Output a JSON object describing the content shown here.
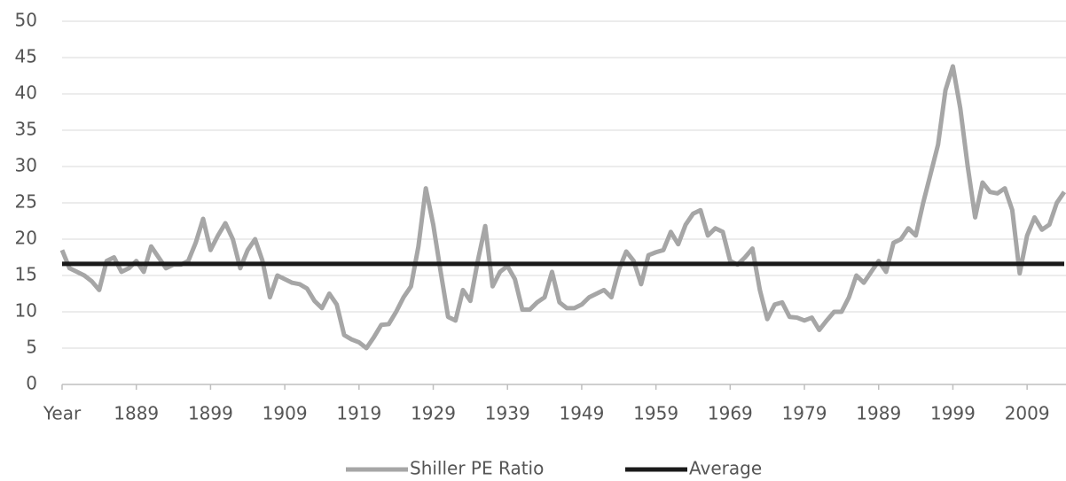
{
  "chart_data": {
    "type": "line",
    "categories": [
      "Year",
      null,
      null,
      null,
      null,
      null,
      null,
      null,
      null,
      null,
      "1889",
      null,
      null,
      null,
      null,
      null,
      null,
      null,
      null,
      null,
      "1899",
      null,
      null,
      null,
      null,
      null,
      null,
      null,
      null,
      null,
      "1909",
      null,
      null,
      null,
      null,
      null,
      null,
      null,
      null,
      null,
      "1919",
      null,
      null,
      null,
      null,
      null,
      null,
      null,
      null,
      null,
      "1929",
      null,
      null,
      null,
      null,
      null,
      null,
      null,
      null,
      null,
      "1939",
      null,
      null,
      null,
      null,
      null,
      null,
      null,
      null,
      null,
      "1949",
      null,
      null,
      null,
      null,
      null,
      null,
      null,
      null,
      null,
      "1959",
      null,
      null,
      null,
      null,
      null,
      null,
      null,
      null,
      null,
      "1969",
      null,
      null,
      null,
      null,
      null,
      null,
      null,
      null,
      null,
      "1979",
      null,
      null,
      null,
      null,
      null,
      null,
      null,
      null,
      null,
      "1989",
      null,
      null,
      null,
      null,
      null,
      null,
      null,
      null,
      null,
      "1999",
      null,
      null,
      null,
      null,
      null,
      null,
      null,
      null,
      null,
      "2009",
      null,
      null,
      null,
      null,
      null
    ],
    "series": [
      {
        "name": "Shiller PE Ratio",
        "color": "#a6a6a6",
        "values": [
          18.5,
          16,
          15.5,
          15,
          14.2,
          13,
          17,
          17.5,
          15.5,
          16,
          17,
          15.5,
          19,
          17.5,
          16,
          16.5,
          16.5,
          17,
          19.5,
          22.8,
          18.5,
          20.5,
          22.2,
          20,
          16,
          18.5,
          20,
          17,
          12,
          15,
          14.5,
          14,
          13.8,
          13.2,
          11.5,
          10.5,
          12.5,
          11,
          6.8,
          6.2,
          5.8,
          5,
          6.5,
          8.2,
          8.3,
          10,
          12,
          13.5,
          19,
          27,
          22,
          15.5,
          9.3,
          8.8,
          13,
          11.5,
          17,
          21.8,
          13.5,
          15.5,
          16.3,
          14.5,
          10.3,
          10.3,
          11.3,
          12,
          15.5,
          11.3,
          10.5,
          10.5,
          11,
          12,
          12.5,
          13,
          12,
          15.8,
          18.3,
          17,
          13.8,
          17.8,
          18.2,
          18.5,
          21,
          19.3,
          22,
          23.5,
          24,
          20.5,
          21.5,
          21,
          17,
          16.5,
          17.5,
          18.7,
          13,
          9,
          11,
          11.3,
          9.3,
          9.2,
          8.8,
          9.2,
          7.5,
          8.8,
          10,
          10,
          12,
          15,
          14,
          15.5,
          17,
          15.5,
          19.5,
          20,
          21.5,
          20.5,
          25,
          29,
          33,
          40.5,
          43.8,
          38,
          30,
          23,
          27.8,
          26.5,
          26.3,
          27,
          24,
          15.3,
          20.5,
          23,
          21.3,
          22,
          25,
          26.5
        ]
      },
      {
        "name": "Average",
        "color": "#1a1a1a",
        "values": [
          16.6,
          16.6,
          16.6,
          16.6,
          16.6,
          16.6,
          16.6,
          16.6,
          16.6,
          16.6,
          16.6,
          16.6,
          16.6,
          16.6,
          16.6,
          16.6,
          16.6,
          16.6,
          16.6,
          16.6,
          16.6,
          16.6,
          16.6,
          16.6,
          16.6,
          16.6,
          16.6,
          16.6,
          16.6,
          16.6,
          16.6,
          16.6,
          16.6,
          16.6,
          16.6,
          16.6,
          16.6,
          16.6,
          16.6,
          16.6,
          16.6,
          16.6,
          16.6,
          16.6,
          16.6,
          16.6,
          16.6,
          16.6,
          16.6,
          16.6,
          16.6,
          16.6,
          16.6,
          16.6,
          16.6,
          16.6,
          16.6,
          16.6,
          16.6,
          16.6,
          16.6,
          16.6,
          16.6,
          16.6,
          16.6,
          16.6,
          16.6,
          16.6,
          16.6,
          16.6,
          16.6,
          16.6,
          16.6,
          16.6,
          16.6,
          16.6,
          16.6,
          16.6,
          16.6,
          16.6,
          16.6,
          16.6,
          16.6,
          16.6,
          16.6,
          16.6,
          16.6,
          16.6,
          16.6,
          16.6,
          16.6,
          16.6,
          16.6,
          16.6,
          16.6,
          16.6,
          16.6,
          16.6,
          16.6,
          16.6,
          16.6,
          16.6,
          16.6,
          16.6,
          16.6,
          16.6,
          16.6,
          16.6,
          16.6,
          16.6,
          16.6,
          16.6,
          16.6,
          16.6,
          16.6,
          16.6,
          16.6,
          16.6,
          16.6,
          16.6,
          16.6,
          16.6,
          16.6,
          16.6,
          16.6,
          16.6,
          16.6,
          16.6,
          16.6,
          16.6,
          16.6,
          16.6,
          16.6,
          16.6,
          16.6,
          16.6
        ]
      }
    ],
    "ylim": [
      0,
      50
    ],
    "yticks": [
      0,
      5,
      10,
      15,
      20,
      25,
      30,
      35,
      40,
      45,
      50
    ],
    "grid": true,
    "legend": "bottom"
  }
}
